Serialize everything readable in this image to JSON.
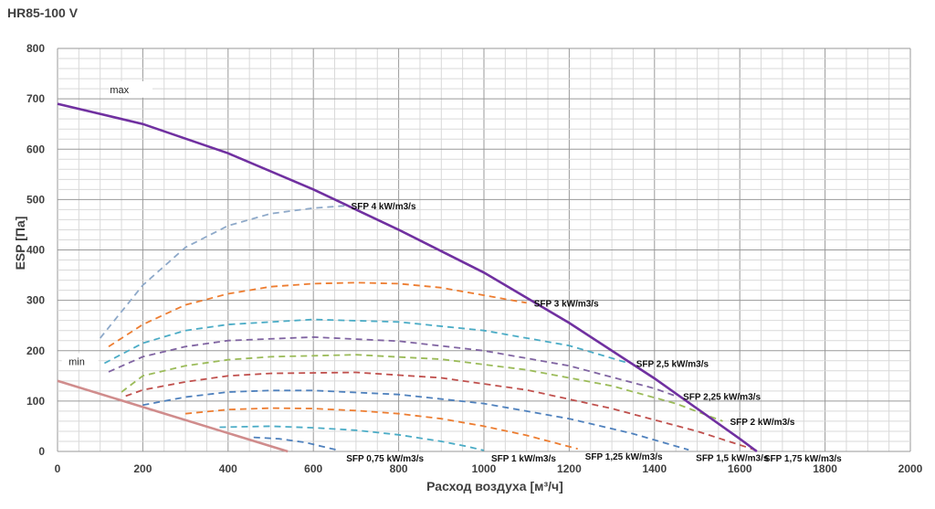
{
  "chart_data": {
    "type": "line",
    "title": "HR85-100 V",
    "xlabel": "Расход воздуха [м³/ч]",
    "ylabel": "ESP  [Па]",
    "xlim": [
      0,
      2000
    ],
    "ylim": [
      0,
      800
    ],
    "xticks": [
      "0",
      "200",
      "400",
      "600",
      "800",
      "1000",
      "1200",
      "1400",
      "1600",
      "1800",
      "2000"
    ],
    "yticks": [
      "0",
      "100",
      "200",
      "300",
      "400",
      "500",
      "600",
      "700",
      "800"
    ],
    "grid": true,
    "labels": {
      "max": "max",
      "min": "min"
    },
    "max_curve": {
      "color": "#7030A0",
      "x": [
        0,
        200,
        400,
        600,
        800,
        1000,
        1200,
        1400,
        1600,
        1640
      ],
      "y": [
        690,
        650,
        592,
        520,
        440,
        355,
        255,
        145,
        25,
        0
      ]
    },
    "min_curve": {
      "color": "#D08C8C",
      "x": [
        0,
        540
      ],
      "y": [
        140,
        0
      ]
    },
    "sfp_curves": [
      {
        "label": "SFP 4 kW/m3/s",
        "color": "#8EA9C9",
        "x": [
          100,
          200,
          300,
          400,
          500,
          600,
          680
        ],
        "y": [
          225,
          330,
          405,
          448,
          472,
          483,
          488
        ]
      },
      {
        "label": "SFP 3 kW/m3/s",
        "color": "#ED7D31",
        "x": [
          120,
          200,
          300,
          400,
          500,
          600,
          700,
          800,
          900,
          1000,
          1100
        ],
        "y": [
          208,
          252,
          291,
          313,
          327,
          333,
          335,
          333,
          325,
          310,
          295
        ]
      },
      {
        "label": "SFP 2,5 kW/m3/s",
        "color": "#4BACC6",
        "x": [
          110,
          200,
          300,
          400,
          600,
          800,
          1000,
          1200,
          1340
        ],
        "y": [
          175,
          215,
          240,
          252,
          262,
          257,
          240,
          210,
          175
        ]
      },
      {
        "label": "SFP 2,25 kW/m3/s",
        "color": "#8064A2",
        "x": [
          120,
          200,
          300,
          400,
          600,
          800,
          1000,
          1200,
          1400,
          1450
        ],
        "y": [
          158,
          188,
          208,
          220,
          227,
          219,
          200,
          170,
          125,
          110
        ]
      },
      {
        "label": "SFP 2 kW/m3/s",
        "color": "#9BBB59",
        "x": [
          150,
          200,
          300,
          400,
          500,
          700,
          900,
          1100,
          1300,
          1450,
          1560
        ],
        "y": [
          118,
          150,
          170,
          182,
          188,
          192,
          183,
          162,
          130,
          95,
          60
        ]
      },
      {
        "label": "SFP 1,75 kW/m3/s",
        "color": "#C0504D",
        "x": [
          160,
          200,
          300,
          400,
          500,
          700,
          900,
          1100,
          1300,
          1500,
          1640
        ],
        "y": [
          110,
          122,
          138,
          150,
          155,
          157,
          146,
          122,
          85,
          40,
          2
        ]
      },
      {
        "label": "SFP 1,5 kW/m3/s",
        "color": "#4F81BD",
        "x": [
          200,
          300,
          400,
          500,
          600,
          800,
          1000,
          1200,
          1350,
          1480
        ],
        "y": [
          92,
          108,
          118,
          121,
          121,
          113,
          95,
          65,
          35,
          3
        ]
      },
      {
        "label": "SFP 1,25 kW/m3/s",
        "color": "#ED7D31",
        "x": [
          300,
          400,
          500,
          600,
          700,
          800,
          900,
          1000,
          1100,
          1220
        ],
        "y": [
          75,
          83,
          86,
          85,
          81,
          75,
          65,
          50,
          32,
          5
        ]
      },
      {
        "label": "SFP 1 kW/m3/s",
        "color": "#4BACC6",
        "x": [
          380,
          500,
          600,
          700,
          800,
          900,
          960,
          1000
        ],
        "y": [
          48,
          50,
          47,
          42,
          33,
          20,
          10,
          2
        ]
      },
      {
        "label": "SFP 0,75 kW/m3/s",
        "color": "#4F81BD",
        "x": [
          460,
          520,
          580,
          620,
          660
        ],
        "y": [
          28,
          25,
          18,
          10,
          2
        ]
      }
    ]
  }
}
